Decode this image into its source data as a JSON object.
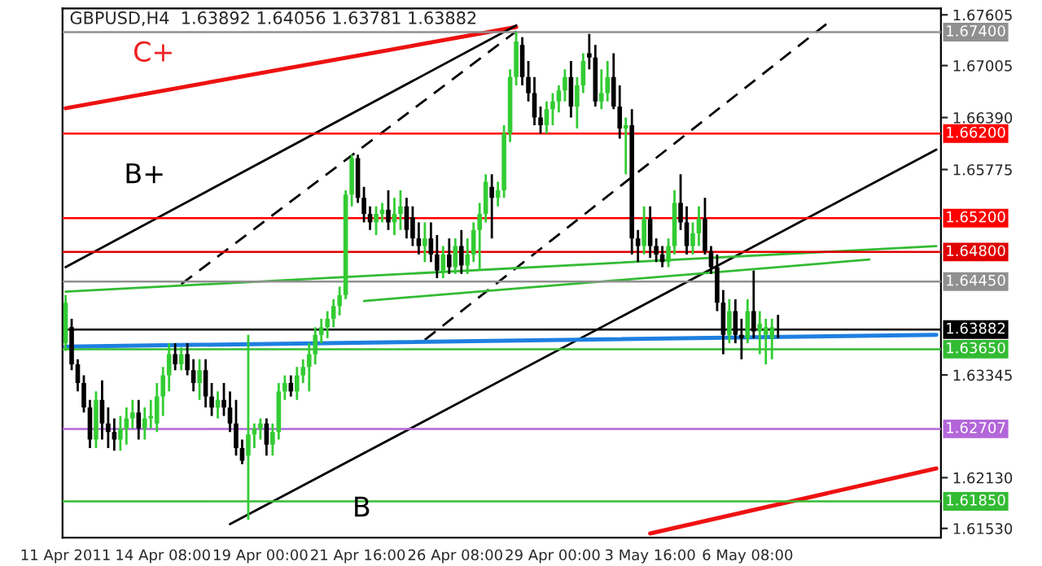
{
  "chart_data": {
    "type": "candlestick",
    "title": "GBPUSD,H4  1.63892 1.64056 1.63781 1.63882",
    "annotations": [
      "C+",
      "B+",
      "B"
    ],
    "categories": [
      "11 Apr 2011",
      null,
      null,
      null,
      null,
      null,
      null,
      null,
      null,
      null,
      null,
      null,
      null,
      null,
      null,
      null,
      "14 Apr 08:00",
      null,
      null,
      null,
      null,
      null,
      null,
      null,
      null,
      null,
      null,
      null,
      null,
      null,
      null,
      null,
      "19 Apr 00:00",
      null,
      null,
      null,
      null,
      null,
      null,
      null,
      null,
      null,
      null,
      null,
      null,
      null,
      null,
      null,
      "21 Apr 16:00",
      null,
      null,
      null,
      null,
      null,
      null,
      null,
      null,
      null,
      null,
      null,
      null,
      null,
      null,
      null,
      "26 Apr 08:00",
      null,
      null,
      null,
      null,
      null,
      null,
      null,
      null,
      null,
      null,
      null,
      null,
      null,
      null,
      null,
      "29 Apr 00:00",
      null,
      null,
      null,
      null,
      null,
      null,
      null,
      null,
      null,
      null,
      null,
      null,
      null,
      null,
      null,
      "3 May 16:00",
      null,
      null,
      null,
      null,
      null,
      null,
      null,
      null,
      null,
      null,
      null,
      null,
      null,
      null,
      null,
      "6 May 08:00",
      null,
      null,
      null,
      null,
      null,
      null,
      null,
      null,
      null,
      null,
      null,
      null,
      null,
      null,
      null,
      null,
      null,
      null,
      null,
      null,
      null,
      null,
      null,
      null,
      null,
      null,
      null,
      null,
      null,
      null,
      null
    ],
    "ohlc": [
      [
        1.6372,
        1.6429,
        1.6363,
        1.642
      ],
      [
        1.6391,
        1.6401,
        1.634,
        1.6347
      ],
      [
        1.6347,
        1.6353,
        1.6315,
        1.6325
      ],
      [
        1.6325,
        1.6334,
        1.629,
        1.6296
      ],
      [
        1.6296,
        1.6305,
        1.6248,
        1.6258
      ],
      [
        1.6258,
        1.6315,
        1.6248,
        1.6305
      ],
      [
        1.6305,
        1.6328,
        1.6258,
        1.6277
      ],
      [
        1.6277,
        1.6296,
        1.6248,
        1.6267
      ],
      [
        1.6267,
        1.6283,
        1.6245,
        1.6258
      ],
      [
        1.6258,
        1.6286,
        1.6245,
        1.6271
      ],
      [
        1.6271,
        1.6296,
        1.6252,
        1.6283
      ],
      [
        1.6283,
        1.6305,
        1.6271,
        1.629
      ],
      [
        1.629,
        1.6305,
        1.6258,
        1.6271
      ],
      [
        1.6271,
        1.6296,
        1.6258,
        1.6283
      ],
      [
        1.6283,
        1.6305,
        1.6271,
        1.6286
      ],
      [
        1.6277,
        1.6325,
        1.6267,
        1.6309
      ],
      [
        1.6309,
        1.6344,
        1.6286,
        1.6334
      ],
      [
        1.6334,
        1.6372,
        1.6315,
        1.6359
      ],
      [
        1.6359,
        1.6372,
        1.634,
        1.6347
      ],
      [
        1.6347,
        1.6367,
        1.634,
        1.6359
      ],
      [
        1.6359,
        1.6372,
        1.6334,
        1.634
      ],
      [
        1.634,
        1.6353,
        1.6315,
        1.6325
      ],
      [
        1.6325,
        1.6353,
        1.6305,
        1.634
      ],
      [
        1.634,
        1.6353,
        1.6296,
        1.6309
      ],
      [
        1.6309,
        1.6325,
        1.6286,
        1.6296
      ],
      [
        1.6296,
        1.6315,
        1.6283,
        1.6305
      ],
      [
        1.6305,
        1.6325,
        1.6286,
        1.6296
      ],
      [
        1.6296,
        1.6315,
        1.6267,
        1.6277
      ],
      [
        1.6277,
        1.6305,
        1.6239,
        1.6248
      ],
      [
        1.6248,
        1.6258,
        1.6229,
        1.6233
      ],
      [
        1.6239,
        1.6382,
        1.6163,
        1.6264
      ],
      [
        1.6264,
        1.6277,
        1.6248,
        1.6271
      ],
      [
        1.6271,
        1.6283,
        1.6258,
        1.6277
      ],
      [
        1.6277,
        1.6283,
        1.6239,
        1.6252
      ],
      [
        1.6252,
        1.6277,
        1.6239,
        1.6267
      ],
      [
        1.6267,
        1.6325,
        1.6258,
        1.6315
      ],
      [
        1.6315,
        1.6334,
        1.6305,
        1.6325
      ],
      [
        1.6325,
        1.6334,
        1.6309,
        1.6315
      ],
      [
        1.6315,
        1.6344,
        1.6305,
        1.6334
      ],
      [
        1.6334,
        1.6353,
        1.6325,
        1.6344
      ],
      [
        1.6344,
        1.6372,
        1.6315,
        1.6359
      ],
      [
        1.6359,
        1.6391,
        1.6347,
        1.6382
      ],
      [
        1.6382,
        1.6401,
        1.6372,
        1.6391
      ],
      [
        1.6391,
        1.641,
        1.6378,
        1.6401
      ],
      [
        1.6401,
        1.6424,
        1.6391,
        1.6416
      ],
      [
        1.6416,
        1.6439,
        1.6405,
        1.6429
      ],
      [
        1.6429,
        1.6553,
        1.6424,
        1.6548
      ],
      [
        1.6548,
        1.6595,
        1.6534,
        1.6591
      ],
      [
        1.6591,
        1.6595,
        1.6538,
        1.6544
      ],
      [
        1.6544,
        1.6557,
        1.6515,
        1.6525
      ],
      [
        1.6525,
        1.6534,
        1.6506,
        1.6515
      ],
      [
        1.6515,
        1.6534,
        1.65,
        1.6525
      ],
      [
        1.6525,
        1.6538,
        1.6515,
        1.653
      ],
      [
        1.653,
        1.6553,
        1.6506,
        1.6515
      ],
      [
        1.6515,
        1.6544,
        1.65,
        1.6525
      ],
      [
        1.6525,
        1.6553,
        1.6506,
        1.6534
      ],
      [
        1.6534,
        1.6544,
        1.6496,
        1.6506
      ],
      [
        1.6521,
        1.6534,
        1.6487,
        1.6496
      ],
      [
        1.6496,
        1.6515,
        1.6477,
        1.6487
      ],
      [
        1.6487,
        1.6515,
        1.6468,
        1.6496
      ],
      [
        1.6496,
        1.6515,
        1.6468,
        1.6477
      ],
      [
        1.6477,
        1.65,
        1.6449,
        1.6458
      ],
      [
        1.6458,
        1.6487,
        1.6449,
        1.6477
      ],
      [
        1.6477,
        1.6496,
        1.6454,
        1.6462
      ],
      [
        1.6462,
        1.6496,
        1.6454,
        1.6487
      ],
      [
        1.6487,
        1.6506,
        1.6454,
        1.6464
      ],
      [
        1.6464,
        1.6496,
        1.6454,
        1.6477
      ],
      [
        1.6477,
        1.6515,
        1.6468,
        1.6506
      ],
      [
        1.6506,
        1.6538,
        1.6458,
        1.6525
      ],
      [
        1.6525,
        1.6572,
        1.6515,
        1.6563
      ],
      [
        1.6557,
        1.6572,
        1.6496,
        1.6544
      ],
      [
        1.6544,
        1.6563,
        1.6534,
        1.6553
      ],
      [
        1.6553,
        1.663,
        1.6544,
        1.662
      ],
      [
        1.662,
        1.6696,
        1.661,
        1.6687
      ],
      [
        1.6687,
        1.674,
        1.6677,
        1.6729
      ],
      [
        1.6725,
        1.6734,
        1.6677,
        1.6687
      ],
      [
        1.6687,
        1.6706,
        1.6658,
        1.6668
      ],
      [
        1.6668,
        1.6687,
        1.663,
        1.6639
      ],
      [
        1.6639,
        1.6652,
        1.662,
        1.663
      ],
      [
        1.663,
        1.6658,
        1.662,
        1.6649
      ],
      [
        1.6649,
        1.6668,
        1.663,
        1.6658
      ],
      [
        1.6658,
        1.6677,
        1.6645,
        1.6671
      ],
      [
        1.6671,
        1.6696,
        1.6658,
        1.6687
      ],
      [
        1.6687,
        1.6706,
        1.6639,
        1.6652
      ],
      [
        1.6652,
        1.6687,
        1.6626,
        1.6677
      ],
      [
        1.6677,
        1.6715,
        1.6668,
        1.6706
      ],
      [
        1.6715,
        1.6738,
        1.6696,
        1.671
      ],
      [
        1.671,
        1.6725,
        1.6652,
        1.6658
      ],
      [
        1.6658,
        1.6696,
        1.6649,
        1.6668
      ],
      [
        1.6668,
        1.6706,
        1.6658,
        1.6687
      ],
      [
        1.6687,
        1.6715,
        1.6649,
        1.6652
      ],
      [
        1.6652,
        1.6677,
        1.6614,
        1.6626
      ],
      [
        1.6626,
        1.6639,
        1.6572,
        1.663
      ],
      [
        1.663,
        1.6649,
        1.6477,
        1.6496
      ],
      [
        1.6496,
        1.6506,
        1.6468,
        1.6487
      ],
      [
        1.6487,
        1.6534,
        1.6477,
        1.6519
      ],
      [
        1.6519,
        1.6534,
        1.6473,
        1.6487
      ],
      [
        1.6487,
        1.6496,
        1.6468,
        1.6477
      ],
      [
        1.6477,
        1.6487,
        1.6462,
        1.6468
      ],
      [
        1.6468,
        1.6496,
        1.6462,
        1.6487
      ],
      [
        1.6487,
        1.6553,
        1.6477,
        1.6538
      ],
      [
        1.6538,
        1.6572,
        1.6506,
        1.6515
      ],
      [
        1.6515,
        1.6534,
        1.6477,
        1.6487
      ],
      [
        1.6487,
        1.6515,
        1.6477,
        1.6502
      ],
      [
        1.6502,
        1.6534,
        1.6487,
        1.6519
      ],
      [
        1.6519,
        1.6544,
        1.6477,
        1.6481
      ],
      [
        1.6481,
        1.6487,
        1.6454,
        1.6462
      ],
      [
        1.6462,
        1.6477,
        1.641,
        1.642
      ],
      [
        1.642,
        1.6435,
        1.6359,
        1.6382
      ],
      [
        1.6382,
        1.6424,
        1.6372,
        1.641
      ],
      [
        1.641,
        1.6424,
        1.6372,
        1.6382
      ],
      [
        1.6382,
        1.6401,
        1.6353,
        1.6378
      ],
      [
        1.6378,
        1.6424,
        1.6372,
        1.641
      ],
      [
        1.641,
        1.6458,
        1.6378,
        1.6386
      ],
      [
        1.6386,
        1.641,
        1.6359,
        1.6395
      ],
      [
        1.6382,
        1.6401,
        1.6347,
        1.6391
      ],
      [
        1.6378,
        1.6401,
        1.6353,
        1.6391
      ],
      [
        1.63892,
        1.64056,
        1.63781,
        1.63882
      ],
      null,
      null,
      null,
      null,
      null,
      null,
      null,
      null,
      null,
      null,
      null,
      null,
      null,
      null,
      null,
      null,
      null,
      null,
      null,
      null,
      null,
      null,
      null,
      null,
      null,
      null
    ],
    "series": [
      {
        "type": "line",
        "color": "#ee1111",
        "line_style": "solid",
        "values": [
          1.665,
          null,
          null,
          null,
          null,
          null,
          null,
          null,
          null,
          null,
          null,
          null,
          null,
          null,
          null,
          null,
          null,
          null,
          null,
          null,
          null,
          null,
          null,
          null,
          null,
          null,
          null,
          null,
          null,
          null,
          null,
          null,
          null,
          null,
          null,
          null,
          null,
          null,
          null,
          null,
          null,
          null,
          null,
          null,
          null,
          null,
          null,
          null,
          null,
          null,
          null,
          null,
          null,
          null,
          null,
          null,
          null,
          null,
          null,
          null,
          null,
          null,
          null,
          null,
          null,
          null,
          null,
          null,
          null,
          null,
          null,
          null,
          null,
          null,
          1.6746,
          null,
          null,
          null,
          null,
          null,
          null,
          null,
          null,
          null,
          null,
          null,
          null,
          null,
          null,
          null,
          null,
          null,
          null,
          null,
          null,
          null,
          null,
          null,
          null,
          null,
          null,
          null,
          null,
          null,
          null,
          null,
          null,
          null,
          null,
          null,
          null,
          null,
          null,
          null,
          null,
          null,
          null,
          null,
          null,
          null,
          null,
          null,
          null,
          null,
          null,
          null,
          null,
          null,
          null,
          null,
          null,
          null,
          null,
          null,
          null,
          null,
          null,
          null,
          null,
          null,
          null,
          null,
          null,
          null
        ]
      },
      {
        "type": "line",
        "color": "#000000",
        "line_style": "solid",
        "values": [
          1.6462,
          null,
          null,
          null,
          null,
          null,
          null,
          null,
          null,
          null,
          null,
          null,
          null,
          null,
          null,
          null,
          null,
          null,
          null,
          null,
          null,
          null,
          null,
          null,
          null,
          null,
          null,
          null,
          null,
          null,
          null,
          null,
          null,
          null,
          null,
          null,
          null,
          null,
          null,
          null,
          null,
          null,
          null,
          null,
          null,
          null,
          null,
          null,
          null,
          null,
          null,
          null,
          null,
          null,
          null,
          null,
          null,
          null,
          null,
          null,
          null,
          null,
          null,
          null,
          null,
          null,
          null,
          null,
          null,
          null,
          null,
          null,
          null,
          null,
          1.6748,
          null,
          null,
          null,
          null,
          null,
          null,
          null,
          null,
          null,
          null,
          null,
          null,
          null,
          null,
          null,
          null,
          null,
          null,
          null,
          null,
          null,
          null,
          null,
          null,
          null,
          null,
          null,
          null,
          null,
          null,
          null,
          null,
          null,
          null,
          null,
          null,
          null,
          null,
          null,
          null,
          null,
          null,
          null,
          null,
          null,
          null,
          null,
          null,
          null,
          null,
          null,
          null,
          null,
          null,
          null,
          null,
          null,
          null,
          null,
          null,
          null,
          null,
          null,
          null,
          null,
          null,
          null,
          null,
          null
        ]
      },
      {
        "type": "line",
        "color": "#000000",
        "line_style": "dashed",
        "values": [
          null,
          null,
          null,
          null,
          null,
          null,
          null,
          null,
          null,
          null,
          null,
          null,
          null,
          null,
          null,
          null,
          null,
          null,
          null,
          1.6442,
          null,
          null,
          null,
          null,
          null,
          null,
          null,
          null,
          null,
          null,
          null,
          null,
          null,
          null,
          null,
          null,
          null,
          null,
          null,
          null,
          null,
          null,
          null,
          null,
          null,
          null,
          null,
          null,
          null,
          null,
          null,
          null,
          null,
          null,
          null,
          null,
          null,
          null,
          null,
          null,
          null,
          null,
          null,
          null,
          null,
          null,
          null,
          null,
          null,
          null,
          null,
          null,
          null,
          null,
          1.6741,
          null,
          null,
          null,
          null,
          null,
          null,
          null,
          null,
          null,
          null,
          null,
          null,
          null,
          null,
          null,
          null,
          null,
          null,
          null,
          null,
          null,
          null,
          null,
          null,
          null,
          null,
          null,
          null,
          null,
          null,
          null,
          null,
          null,
          null,
          null,
          null,
          null,
          null,
          null,
          null,
          null,
          null,
          null,
          null,
          null,
          null,
          null,
          null,
          null,
          null,
          null,
          null,
          null,
          null,
          null,
          null,
          null,
          null,
          null,
          null,
          null,
          null,
          null,
          null,
          null,
          null,
          null,
          null,
          null
        ]
      },
      {
        "type": "line",
        "color": "#000000",
        "line_style": "dashed",
        "values": [
          null,
          null,
          null,
          null,
          null,
          null,
          null,
          null,
          null,
          null,
          null,
          null,
          null,
          null,
          null,
          null,
          null,
          null,
          null,
          null,
          null,
          null,
          null,
          null,
          null,
          null,
          null,
          null,
          null,
          null,
          null,
          null,
          null,
          null,
          null,
          null,
          null,
          null,
          null,
          null,
          null,
          null,
          null,
          null,
          null,
          null,
          null,
          null,
          null,
          null,
          null,
          null,
          null,
          null,
          null,
          null,
          null,
          null,
          null,
          1.6376,
          null,
          null,
          null,
          null,
          null,
          null,
          null,
          null,
          null,
          null,
          null,
          null,
          null,
          null,
          null,
          null,
          null,
          null,
          null,
          null,
          null,
          null,
          null,
          null,
          null,
          null,
          null,
          null,
          null,
          null,
          null,
          null,
          null,
          null,
          null,
          null,
          null,
          null,
          null,
          null,
          null,
          null,
          null,
          null,
          null,
          null,
          null,
          null,
          null,
          null,
          null,
          null,
          null,
          null,
          null,
          null,
          null,
          null,
          null,
          null,
          null,
          null,
          null,
          null,
          null,
          1.675,
          null,
          null,
          null,
          null,
          null,
          null,
          null,
          null,
          null,
          null,
          null,
          null,
          null,
          null,
          null,
          null,
          null,
          null
        ]
      },
      {
        "type": "line",
        "color": "#000000",
        "line_style": "solid",
        "values": [
          null,
          null,
          null,
          null,
          null,
          null,
          null,
          null,
          null,
          null,
          null,
          null,
          null,
          null,
          null,
          null,
          null,
          null,
          null,
          null,
          null,
          null,
          null,
          null,
          null,
          null,
          null,
          1.6158,
          null,
          null,
          null,
          null,
          null,
          null,
          null,
          null,
          null,
          null,
          null,
          null,
          null,
          null,
          null,
          null,
          null,
          null,
          null,
          null,
          null,
          null,
          null,
          null,
          null,
          null,
          null,
          null,
          null,
          null,
          null,
          null,
          null,
          null,
          null,
          null,
          null,
          null,
          null,
          null,
          null,
          null,
          null,
          null,
          null,
          null,
          null,
          null,
          null,
          null,
          null,
          null,
          null,
          null,
          null,
          null,
          null,
          null,
          null,
          null,
          null,
          null,
          null,
          null,
          null,
          null,
          null,
          null,
          null,
          null,
          null,
          null,
          null,
          null,
          null,
          null,
          null,
          null,
          null,
          null,
          null,
          null,
          null,
          null,
          null,
          null,
          null,
          null,
          null,
          null,
          null,
          null,
          null,
          null,
          null,
          null,
          null,
          null,
          null,
          null,
          null,
          null,
          null,
          null,
          null,
          null,
          null,
          null,
          null,
          null,
          null,
          null,
          null,
          null,
          null,
          1.6601
        ]
      },
      {
        "type": "line",
        "color": "#33bb33",
        "line_style": "solid",
        "values": [
          1.6433,
          null,
          null,
          null,
          null,
          null,
          null,
          null,
          null,
          null,
          null,
          null,
          null,
          null,
          null,
          null,
          null,
          null,
          null,
          null,
          null,
          null,
          null,
          null,
          null,
          null,
          null,
          null,
          null,
          null,
          null,
          null,
          null,
          null,
          null,
          null,
          null,
          null,
          null,
          null,
          null,
          null,
          null,
          null,
          null,
          null,
          null,
          null,
          null,
          null,
          null,
          null,
          null,
          null,
          null,
          null,
          null,
          null,
          null,
          null,
          null,
          null,
          null,
          null,
          null,
          null,
          null,
          null,
          null,
          null,
          null,
          null,
          null,
          null,
          null,
          null,
          null,
          null,
          null,
          null,
          null,
          null,
          null,
          null,
          null,
          null,
          null,
          null,
          null,
          null,
          null,
          null,
          null,
          null,
          null,
          null,
          null,
          null,
          null,
          null,
          null,
          null,
          null,
          null,
          null,
          null,
          null,
          null,
          null,
          null,
          null,
          null,
          null,
          null,
          null,
          null,
          null,
          null,
          null,
          null,
          null,
          null,
          null,
          null,
          null,
          null,
          null,
          null,
          null,
          null,
          null,
          null,
          null,
          null,
          null,
          null,
          null,
          null,
          null,
          null,
          null,
          null,
          null,
          1.6487
        ]
      },
      {
        "type": "line",
        "color": "#33bb33",
        "line_style": "solid",
        "values": [
          null,
          null,
          null,
          null,
          null,
          null,
          null,
          null,
          null,
          null,
          null,
          null,
          null,
          null,
          null,
          null,
          null,
          null,
          null,
          null,
          null,
          null,
          null,
          null,
          null,
          null,
          null,
          null,
          null,
          null,
          null,
          null,
          null,
          null,
          null,
          null,
          null,
          null,
          null,
          null,
          null,
          null,
          null,
          null,
          null,
          null,
          null,
          null,
          null,
          1.6422,
          null,
          null,
          null,
          null,
          null,
          null,
          null,
          null,
          null,
          null,
          null,
          null,
          null,
          null,
          null,
          null,
          null,
          null,
          null,
          null,
          null,
          null,
          null,
          null,
          null,
          null,
          null,
          null,
          null,
          null,
          null,
          null,
          null,
          null,
          null,
          null,
          null,
          null,
          null,
          null,
          null,
          null,
          null,
          null,
          null,
          null,
          null,
          null,
          null,
          null,
          null,
          null,
          null,
          null,
          null,
          null,
          null,
          null,
          null,
          null,
          null,
          null,
          null,
          null,
          null,
          null,
          null,
          null,
          null,
          null,
          null,
          null,
          null,
          null,
          null,
          null,
          null,
          null,
          null,
          null,
          null,
          null,
          1.6471,
          null,
          null,
          null,
          null,
          null,
          null,
          null,
          null,
          null,
          null,
          null
        ]
      },
      {
        "type": "line",
        "color": "#1e7fe0",
        "line_style": "solid",
        "values": [
          1.6368,
          null,
          null,
          null,
          null,
          null,
          null,
          null,
          null,
          null,
          null,
          null,
          null,
          null,
          null,
          null,
          null,
          null,
          null,
          null,
          null,
          null,
          null,
          null,
          null,
          null,
          null,
          null,
          null,
          null,
          null,
          null,
          null,
          null,
          null,
          null,
          null,
          null,
          null,
          null,
          null,
          null,
          null,
          null,
          null,
          null,
          null,
          null,
          null,
          null,
          null,
          null,
          null,
          null,
          null,
          null,
          null,
          null,
          null,
          null,
          null,
          null,
          null,
          null,
          null,
          null,
          null,
          null,
          null,
          null,
          null,
          null,
          null,
          null,
          null,
          null,
          null,
          null,
          null,
          null,
          null,
          null,
          null,
          null,
          null,
          null,
          null,
          null,
          null,
          null,
          null,
          null,
          null,
          null,
          null,
          null,
          null,
          null,
          null,
          null,
          null,
          null,
          null,
          null,
          null,
          null,
          null,
          null,
          null,
          null,
          null,
          null,
          null,
          null,
          null,
          null,
          null,
          null,
          null,
          null,
          null,
          null,
          null,
          null,
          null,
          null,
          null,
          null,
          null,
          null,
          null,
          null,
          null,
          null,
          null,
          null,
          null,
          null,
          null,
          null,
          null,
          null,
          null,
          1.6382
        ]
      },
      {
        "type": "line",
        "color": "#ee1111",
        "line_style": "solid",
        "values": [
          null,
          null,
          null,
          null,
          null,
          null,
          null,
          null,
          null,
          null,
          null,
          null,
          null,
          null,
          null,
          null,
          null,
          null,
          null,
          null,
          null,
          null,
          null,
          null,
          null,
          null,
          null,
          null,
          null,
          null,
          null,
          null,
          null,
          null,
          null,
          null,
          null,
          null,
          null,
          null,
          null,
          null,
          null,
          null,
          null,
          null,
          null,
          null,
          null,
          null,
          null,
          null,
          null,
          null,
          null,
          null,
          null,
          null,
          null,
          null,
          null,
          null,
          null,
          null,
          null,
          null,
          null,
          null,
          null,
          null,
          null,
          null,
          null,
          null,
          null,
          null,
          null,
          null,
          null,
          null,
          null,
          null,
          null,
          null,
          null,
          null,
          null,
          null,
          null,
          null,
          null,
          null,
          null,
          null,
          null,
          null,
          1.6147,
          null,
          null,
          null,
          null,
          null,
          null,
          null,
          null,
          null,
          null,
          null,
          null,
          null,
          null,
          null,
          null,
          null,
          null,
          null,
          null,
          null,
          null,
          null,
          null,
          null,
          null,
          null,
          null,
          null,
          null,
          null,
          null,
          null,
          null,
          null,
          null,
          null,
          null,
          null,
          null,
          null,
          null,
          null,
          null,
          null,
          null,
          1.6224
        ]
      }
    ],
    "ref_lines": [
      {
        "axis": "y",
        "value": 1.674,
        "label": "1.67400",
        "color": "#909090"
      },
      {
        "axis": "y",
        "value": 1.662,
        "label": "1.66200",
        "color": "#ff0000"
      },
      {
        "axis": "y",
        "value": 1.652,
        "label": "1.65200",
        "color": "#ff0000"
      },
      {
        "axis": "y",
        "value": 1.648,
        "label": "1.64800",
        "color": "#e00000"
      },
      {
        "axis": "y",
        "value": 1.6445,
        "label": "1.64450",
        "color": "#909090"
      },
      {
        "axis": "y",
        "value": 1.63882,
        "label": "1.63882",
        "color": "#000000"
      },
      {
        "axis": "y",
        "value": 1.6365,
        "label": "1.63650",
        "color": "#33bb33"
      },
      {
        "axis": "y",
        "value": 1.62707,
        "label": "1.62707",
        "color": "#b366d9"
      },
      {
        "axis": "y",
        "value": 1.6185,
        "label": "1.61850",
        "color": "#33bb33"
      }
    ],
    "ylim": [
      1.6142,
      1.6768
    ],
    "yticks": [
      1.67605,
      1.67005,
      {
        "value": 1.6639,
        "label": "1.66390"
      },
      1.65775,
      1.63345,
      {
        "value": 1.6213,
        "label": "1.62130"
      },
      {
        "value": 1.6153,
        "label": "1.61530"
      }
    ],
    "grid": false,
    "legend": false
  }
}
